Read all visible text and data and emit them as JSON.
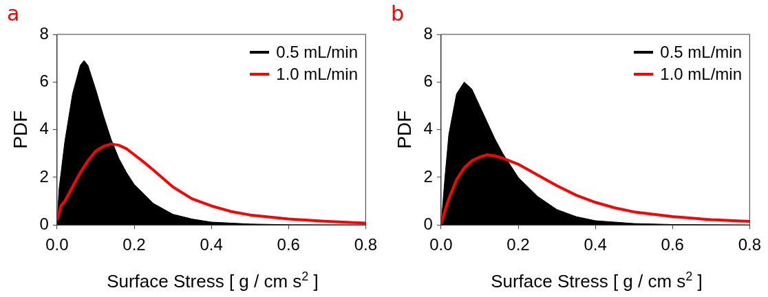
{
  "chart_data": [
    {
      "type": "line",
      "title": "a",
      "xlabel": "Surface Stress [ g / cm s$^{2}$ ]",
      "ylabel": "PDF",
      "xlim": [
        0,
        0.8
      ],
      "xticks": [
        {
          "value": 0,
          "label": "0.0"
        },
        0.2,
        0.4,
        0.6,
        0.8
      ],
      "ylim": [
        0,
        8
      ],
      "yticks": [
        0,
        2,
        4,
        6,
        8
      ],
      "grid": false,
      "legend": "top right",
      "marker": "none",
      "series": [
        {
          "name": "0.5 mL/min",
          "type": "area",
          "color": "#000000",
          "x": [
            0,
            0.005,
            0.02,
            0.04,
            0.06,
            0.07,
            0.08,
            0.1,
            0.12,
            0.14,
            0.16,
            0.18,
            0.2,
            0.25,
            0.3,
            0.35,
            0.4,
            0.5,
            0.6,
            0.8
          ],
          "values": [
            0,
            1.5,
            3.5,
            5.5,
            6.7,
            6.9,
            6.7,
            5.7,
            4.6,
            3.6,
            2.8,
            2.2,
            1.7,
            0.9,
            0.45,
            0.25,
            0.12,
            0.04,
            0.01,
            0
          ]
        },
        {
          "name": "1.0 mL/min",
          "type": "line",
          "color": "#ff0000",
          "x": [
            0,
            0.01,
            0.02,
            0.04,
            0.06,
            0.08,
            0.1,
            0.12,
            0.14,
            0.16,
            0.18,
            0.2,
            0.22,
            0.25,
            0.3,
            0.35,
            0.4,
            0.45,
            0.5,
            0.6,
            0.7,
            0.8
          ],
          "values": [
            0.2,
            0.8,
            1.0,
            1.6,
            2.2,
            2.7,
            3.1,
            3.3,
            3.4,
            3.35,
            3.2,
            2.95,
            2.7,
            2.3,
            1.6,
            1.1,
            0.8,
            0.57,
            0.42,
            0.25,
            0.15,
            0.08
          ]
        }
      ]
    },
    {
      "type": "line",
      "title": "b",
      "xlabel": "Surface Stress [ g / cm s$^{2}$ ]",
      "ylabel": "PDF",
      "xlim": [
        0,
        0.8
      ],
      "xticks": [
        {
          "value": 0,
          "label": "0.0"
        },
        0.2,
        0.4,
        0.6,
        0.8
      ],
      "ylim": [
        0,
        8
      ],
      "yticks": [
        0,
        2,
        4,
        6,
        8
      ],
      "grid": false,
      "legend": "top right",
      "marker": "none",
      "series": [
        {
          "name": "0.5 mL/min",
          "type": "area",
          "color": "#000000",
          "x": [
            0,
            0.01,
            0.02,
            0.04,
            0.06,
            0.08,
            0.1,
            0.12,
            0.14,
            0.16,
            0.18,
            0.2,
            0.25,
            0.3,
            0.35,
            0.4,
            0.5,
            0.6,
            0.8
          ],
          "values": [
            0,
            2.0,
            3.8,
            5.5,
            6.0,
            5.7,
            5.0,
            4.3,
            3.6,
            3.0,
            2.5,
            2.0,
            1.2,
            0.65,
            0.35,
            0.18,
            0.06,
            0.02,
            0
          ]
        },
        {
          "name": "1.0 mL/min",
          "type": "line",
          "color": "#ff0000",
          "x": [
            0,
            0.01,
            0.02,
            0.04,
            0.06,
            0.08,
            0.1,
            0.12,
            0.14,
            0.16,
            0.2,
            0.25,
            0.3,
            0.35,
            0.4,
            0.45,
            0.5,
            0.6,
            0.7,
            0.8
          ],
          "values": [
            0.05,
            0.6,
            1.1,
            1.9,
            2.4,
            2.7,
            2.85,
            2.95,
            2.9,
            2.8,
            2.55,
            2.1,
            1.65,
            1.25,
            0.95,
            0.72,
            0.55,
            0.35,
            0.22,
            0.15
          ]
        }
      ]
    }
  ]
}
